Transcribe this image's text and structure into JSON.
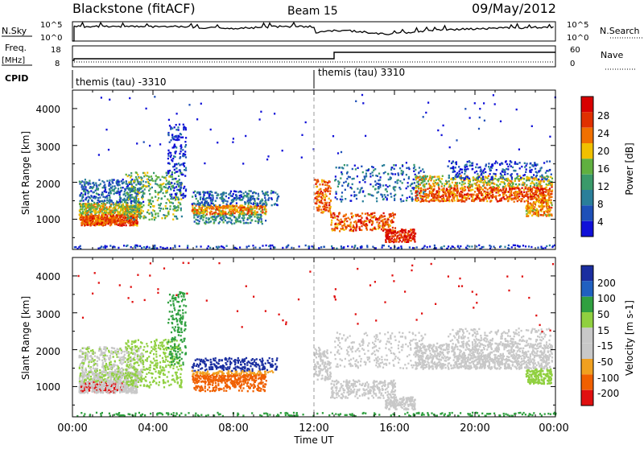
{
  "header": {
    "station": "Blackstone (fitACF)",
    "beam": "Beam 15",
    "date": "09/May/2012"
  },
  "left_labels": {
    "nsky": "N.Sky",
    "freq": "Freq.",
    "mhz": "[MHz]",
    "cpid": "CPID"
  },
  "right_labels": {
    "nsearch": "N.Search",
    "nave": "Nave"
  },
  "noise_axis": {
    "top": "10^5",
    "bottom": "10^0"
  },
  "freq_axis": {
    "ticks": [
      "18",
      "8"
    ]
  },
  "nave_axis": {
    "ticks": [
      "60",
      "0"
    ]
  },
  "cpid": {
    "first": "themis (tau) -3310",
    "second": "themis (tau) 3310"
  },
  "colors": {
    "power_scale": [
      "#1010d8",
      "#1e50b8",
      "#2a7f9a",
      "#3a9a6a",
      "#60b040",
      "#f0c000",
      "#f07000",
      "#e03000",
      "#d80000"
    ],
    "velocity_scale": [
      "#1a2ea0",
      "#2060c0",
      "#30a040",
      "#90d040",
      "#c8c8c8",
      "#c8c8c8",
      "#f0a020",
      "#f06000",
      "#e01010"
    ]
  },
  "chart_data": [
    {
      "type": "heatmap",
      "title": "Power",
      "ylabel": "Slant Range [km]",
      "xlabel": "",
      "x_range": [
        "00:00",
        "24:00"
      ],
      "ylim": [
        180,
        4500
      ],
      "y_ticks": [
        "4000",
        "3000",
        "2000",
        "1000"
      ],
      "colorbar": {
        "label": "Power [dB]",
        "ticks": [
          "28",
          "24",
          "20",
          "16",
          "12",
          "8",
          "4"
        ]
      }
    },
    {
      "type": "heatmap",
      "title": "Velocity",
      "ylabel": "Slant Range [km]",
      "xlabel": "Time UT",
      "x_range": [
        "00:00",
        "24:00"
      ],
      "x_ticks": [
        "00:00",
        "04:00",
        "08:00",
        "12:00",
        "16:00",
        "20:00",
        "00:00"
      ],
      "ylim": [
        180,
        4500
      ],
      "y_ticks": [
        "4000",
        "3000",
        "2000",
        "1000"
      ],
      "colorbar": {
        "label": "Velocity [m s-1]",
        "ticks": [
          "200",
          "100",
          "50",
          "15",
          "-15",
          "-50",
          "-100",
          "-200"
        ]
      }
    }
  ]
}
